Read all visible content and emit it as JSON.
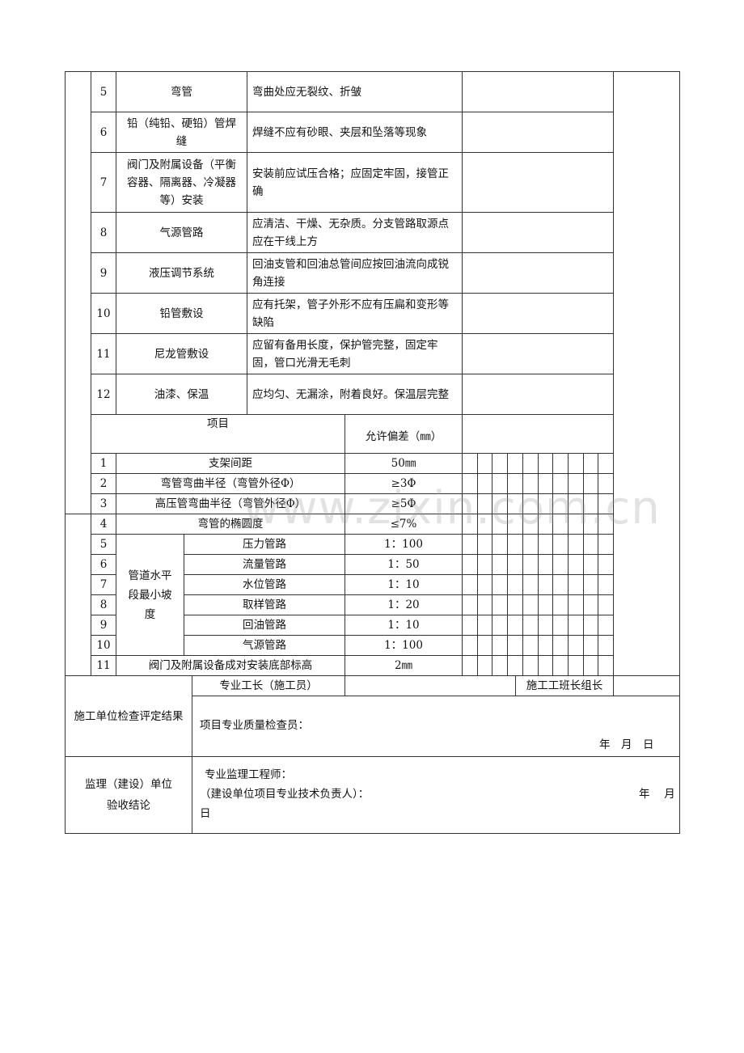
{
  "rows_top": [
    {
      "no": "5",
      "item": "弯管",
      "req": "弯曲处应无裂纹、折皱"
    },
    {
      "no": "6",
      "item": "铅（纯铅、硬铅）管焊缝",
      "req": "焊缝不应有砂眼、夹层和坠落等现象"
    },
    {
      "no": "7",
      "item": "阀门及附属设备（平衡容器、隔离器、冷凝器等）安装",
      "req": "安装前应试压合格；应固定牢固，接管正确"
    },
    {
      "no": "8",
      "item": "气源管路",
      "req": "应清洁、干燥、无杂质。分支管路取源点应在干线上方"
    },
    {
      "no": "9",
      "item": "液压调节系统",
      "req": "回油支管和回油总管间应按回油流向成锐角连接"
    },
    {
      "no": "10",
      "item": "铅管敷设",
      "req": "应有托架，管子外形不应有压扁和变形等缺陷"
    },
    {
      "no": "11",
      "item": "尼龙管敷设",
      "req": "应留有备用长度，保护管完整，固定牢固，管口光滑无毛刺"
    },
    {
      "no": "12",
      "item": "油漆、保温",
      "req": "应均匀、无漏涂，附着良好。保温层完整"
    }
  ],
  "dev_header": {
    "item": "项目",
    "tol": "允许偏差（㎜）"
  },
  "rows_dev": [
    {
      "no": "1",
      "item": "支架间距",
      "tol": "50㎜"
    },
    {
      "no": "2",
      "item": "弯管弯曲半径（弯管外径Φ）",
      "tol": "≥3Φ"
    },
    {
      "no": "3",
      "item": "高压管弯曲半径（弯管外径Φ）",
      "tol": "≥5Φ"
    },
    {
      "no": "4",
      "item": "弯管的椭圆度",
      "tol": "≤7%"
    }
  ],
  "slope_group": "管道水平段最小坡度",
  "rows_slope": [
    {
      "no": "5",
      "item": "压力管路",
      "tol": "1：100"
    },
    {
      "no": "6",
      "item": "流量管路",
      "tol": "1：50"
    },
    {
      "no": "7",
      "item": "水位管路",
      "tol": "1：10"
    },
    {
      "no": "8",
      "item": "取样管路",
      "tol": "1：20"
    },
    {
      "no": "9",
      "item": "回油管路",
      "tol": "1：10"
    },
    {
      "no": "10",
      "item": "气源管路",
      "tol": "1：100"
    }
  ],
  "row_last": {
    "no": "11",
    "item": "阀门及附属设备成对安装底部标高",
    "tol": "2㎜"
  },
  "construction": {
    "label": "施工单位检查评定结果",
    "foreman": "专业工长（施工员）",
    "team_leader": "施工工班长组长",
    "inspector": "项目专业质量检查员：",
    "date": "年　月　日"
  },
  "supervision": {
    "label_line1": "监理（建设）单位",
    "label_line2": "验收结论",
    "engineer": "专业监理工程师：",
    "owner": "（建设单位项目专业技术负责人）：",
    "date_right": "年　 月",
    "date_day": "日"
  },
  "watermark": "www.zixin.com.cn"
}
